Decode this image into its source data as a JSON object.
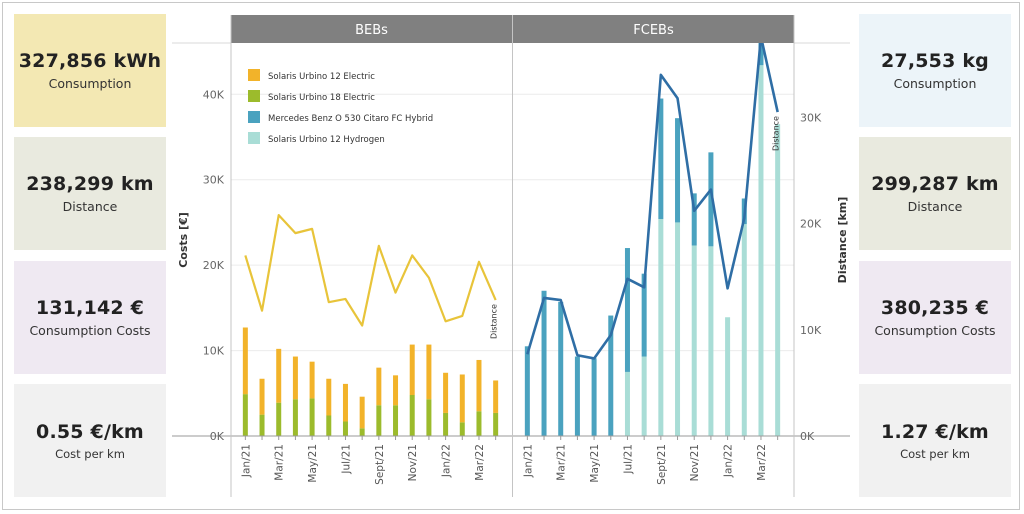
{
  "kpis_left": [
    {
      "value": "327,856 kWh",
      "label": "Consumption",
      "color": "#f3e8b3"
    },
    {
      "value": "238,299 km",
      "label": "Distance",
      "color": "#e9eadf"
    },
    {
      "value": "131,142 €",
      "label": "Consumption Costs",
      "color": "#efe9f2"
    },
    {
      "value": "0.55 €/km",
      "label": "Cost per km",
      "color": "#f1f1f1"
    }
  ],
  "kpis_right": [
    {
      "value": "27,553 kg",
      "label": "Consumption",
      "color": "#ecf4f9"
    },
    {
      "value": "299,287 km",
      "label": "Distance",
      "color": "#e9eadf"
    },
    {
      "value": "380,235 €",
      "label": "Consumption Costs",
      "color": "#efe9f2"
    },
    {
      "value": "1.27 €/km",
      "label": "Cost per km",
      "color": "#f1f1f1"
    }
  ],
  "chart_data": {
    "type": "bar",
    "panels": [
      "BEBs",
      "FCEBs"
    ],
    "ylabel": "Costs [€]",
    "y2label": "Distance [km]",
    "ylim": [
      0,
      46000
    ],
    "y2lim": [
      0,
      37000
    ],
    "y_ticks": [
      0,
      10000,
      20000,
      30000,
      40000
    ],
    "y_tick_labels": [
      "0K",
      "10K",
      "20K",
      "30K",
      "40K"
    ],
    "y2_ticks": [
      0,
      10000,
      20000,
      30000
    ],
    "y2_tick_labels": [
      "0K",
      "10K",
      "20K",
      "30K"
    ],
    "legend": [
      {
        "name": "Solaris Urbino 12 Electric",
        "color": "#f2b32a"
      },
      {
        "name": "Solaris Urbino 18 Electric",
        "color": "#9cbb2c"
      },
      {
        "name": "Mercedes Benz O 530 Citaro FC Hybrid",
        "color": "#4aa2bf"
      },
      {
        "name": "Solaris Urbino 12 Hydrogen",
        "color": "#a9ddd6"
      }
    ],
    "line_label": "Distance",
    "tick_labels_shown": [
      "Jan/21",
      "Mar/21",
      "May/21",
      "Jul/21",
      "Sept/21",
      "Nov/21",
      "Jan/22",
      "Mar/22"
    ],
    "tick_label_indices": [
      0,
      2,
      4,
      6,
      8,
      10,
      12,
      14
    ],
    "bebs": {
      "urbino12_electric": [
        7800,
        4200,
        6300,
        5000,
        4300,
        4300,
        4400,
        3700,
        4400,
        3500,
        5900,
        6400,
        4700,
        5600,
        6000,
        3800
      ],
      "urbino18_electric": [
        4900,
        2500,
        3900,
        4300,
        4400,
        2400,
        1700,
        900,
        3600,
        3600,
        4800,
        4300,
        2700,
        1600,
        2900,
        2700
      ],
      "distance": [
        17000,
        11800,
        20800,
        19100,
        19500,
        12600,
        12900,
        10400,
        17900,
        13500,
        17000,
        14900,
        10800,
        11300,
        16400,
        12800
      ]
    },
    "fcebs": {
      "citaro_fc_hybrid": [
        10500,
        17000,
        15700,
        9300,
        9100,
        14100,
        14500,
        9700,
        14100,
        12200,
        6100,
        11000,
        0,
        3000,
        3500,
        0
      ],
      "urbino12_hydrogen": [
        0,
        0,
        0,
        0,
        0,
        0,
        7500,
        9300,
        25400,
        25000,
        22300,
        22200,
        13900,
        24800,
        43400,
        36500
      ],
      "distance": [
        7700,
        13000,
        12800,
        7600,
        7300,
        9500,
        14800,
        14000,
        34000,
        31800,
        21200,
        23200,
        13900,
        20500,
        37600,
        30500
      ]
    }
  }
}
